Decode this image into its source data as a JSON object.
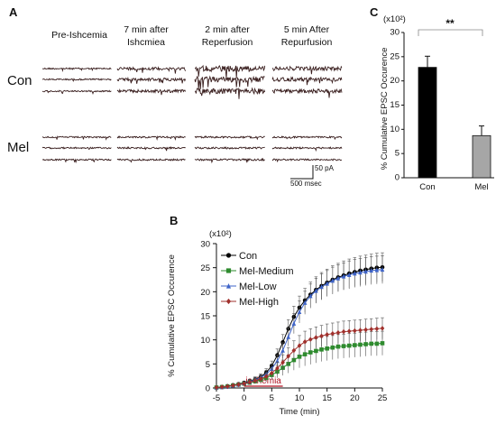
{
  "panel_a": {
    "letter": "A",
    "columns": [
      [
        "Pre-Ishcemia"
      ],
      [
        "7 min after",
        "Ishcmiea"
      ],
      [
        "2 min after",
        "Reperfusion"
      ],
      [
        "5 min After",
        "Repurfusion"
      ]
    ],
    "rows": [
      "Con",
      "Mel"
    ],
    "scalebar_time": "500 msec",
    "scalebar_amp": "50 pA"
  },
  "chart_data": [
    {
      "panel": "B",
      "type": "line",
      "ylabel": "% Cumulative EPSC Occurence",
      "ylabel_multiplier": "(x10²)",
      "xlabel": "Time (min)",
      "xlim": [
        -5,
        25
      ],
      "ylim": [
        0,
        30
      ],
      "xticks": [
        -5,
        0,
        5,
        10,
        15,
        20,
        25
      ],
      "yticks": [
        0,
        5,
        10,
        15,
        20,
        25,
        30
      ],
      "annotation": "ischemia",
      "annotation_span": [
        0,
        7
      ],
      "x": [
        -5,
        -4,
        -3,
        -2,
        -1,
        0,
        1,
        2,
        3,
        4,
        5,
        6,
        7,
        8,
        9,
        10,
        11,
        12,
        13,
        14,
        15,
        16,
        17,
        18,
        19,
        20,
        21,
        22,
        23,
        24,
        25
      ],
      "series": [
        {
          "name": "Con",
          "color": "#000000",
          "marker": "circle",
          "values": [
            0.1,
            0.2,
            0.4,
            0.6,
            0.8,
            1.1,
            1.4,
            1.8,
            2.3,
            3.2,
            4.6,
            6.8,
            9.5,
            12.3,
            14.8,
            16.7,
            18.2,
            19.4,
            20.4,
            21.2,
            21.9,
            22.5,
            23.0,
            23.4,
            23.8,
            24.1,
            24.4,
            24.6,
            24.8,
            25.0,
            25.1
          ],
          "error": [
            0.1,
            0.1,
            0.2,
            0.2,
            0.3,
            0.3,
            0.4,
            0.5,
            0.6,
            0.8,
            1.0,
            1.3,
            1.6,
            1.9,
            2.2,
            2.4,
            2.5,
            2.6,
            2.7,
            2.8,
            2.8,
            2.9,
            2.9,
            3.0,
            3.0,
            3.0,
            3.0,
            3.0,
            3.0,
            3.0,
            3.0
          ]
        },
        {
          "name": "Mel-Medium",
          "color": "#2e8b2e",
          "marker": "square",
          "values": [
            0.1,
            0.2,
            0.3,
            0.5,
            0.7,
            0.9,
            1.1,
            1.4,
            1.7,
            2.1,
            2.7,
            3.4,
            4.2,
            5.0,
            5.8,
            6.5,
            7.0,
            7.4,
            7.7,
            8.0,
            8.2,
            8.4,
            8.6,
            8.7,
            8.8,
            8.9,
            9.0,
            9.1,
            9.2,
            9.2,
            9.3
          ],
          "error": [
            0.1,
            0.1,
            0.2,
            0.2,
            0.3,
            0.3,
            0.4,
            0.5,
            0.6,
            0.8,
            1.0,
            1.3,
            1.6,
            1.9,
            2.1,
            2.3,
            2.4,
            2.5,
            2.5,
            2.5,
            2.5,
            2.5,
            2.5,
            2.5,
            2.5,
            2.5,
            2.5,
            2.5,
            2.5,
            2.5,
            2.5
          ]
        },
        {
          "name": "Mel-Low",
          "color": "#3f64c8",
          "marker": "triangle",
          "values": [
            0.1,
            0.2,
            0.3,
            0.5,
            0.7,
            1.0,
            1.3,
            1.7,
            2.2,
            2.9,
            4.0,
            5.6,
            7.8,
            10.6,
            13.4,
            15.8,
            17.7,
            19.1,
            20.2,
            21.0,
            21.7,
            22.3,
            22.8,
            23.2,
            23.5,
            23.8,
            24.0,
            24.2,
            24.4,
            24.5,
            24.6
          ],
          "error": [
            0.1,
            0.1,
            0.2,
            0.2,
            0.3,
            0.3,
            0.4,
            0.5,
            0.6,
            0.8,
            1.0,
            1.3,
            1.6,
            1.9,
            2.1,
            2.3,
            2.4,
            2.5,
            2.6,
            2.7,
            2.7,
            2.8,
            2.8,
            2.8,
            2.9,
            2.9,
            2.9,
            2.9,
            2.9,
            2.9,
            2.9
          ]
        },
        {
          "name": "Mel-High",
          "color": "#a0302c",
          "marker": "diamond",
          "values": [
            0.1,
            0.2,
            0.3,
            0.5,
            0.7,
            0.9,
            1.2,
            1.5,
            1.9,
            2.4,
            3.1,
            4.1,
            5.3,
            6.6,
            7.8,
            8.8,
            9.6,
            10.1,
            10.5,
            10.8,
            11.1,
            11.3,
            11.5,
            11.7,
            11.8,
            11.9,
            12.0,
            12.1,
            12.2,
            12.3,
            12.4
          ],
          "error": [
            0.1,
            0.1,
            0.2,
            0.2,
            0.3,
            0.3,
            0.4,
            0.5,
            0.6,
            0.8,
            1.0,
            1.3,
            1.6,
            1.8,
            2.0,
            2.1,
            2.2,
            2.2,
            2.2,
            2.2,
            2.2,
            2.2,
            2.2,
            2.2,
            2.2,
            2.2,
            2.2,
            2.2,
            2.2,
            2.2,
            2.2
          ]
        }
      ]
    },
    {
      "panel": "C",
      "type": "bar",
      "ylabel": "% Cumulative EPSC Occurence",
      "ylabel_multiplier": "(x10²)",
      "categories": [
        "Con",
        "Mel"
      ],
      "values": [
        22.8,
        8.7
      ],
      "errors": [
        2.3,
        2.0
      ],
      "colors": [
        "#000000",
        "#a6a6a6"
      ],
      "ylim": [
        0,
        30
      ],
      "yticks": [
        0,
        5,
        10,
        15,
        20,
        25,
        30
      ],
      "significance": "**"
    }
  ]
}
